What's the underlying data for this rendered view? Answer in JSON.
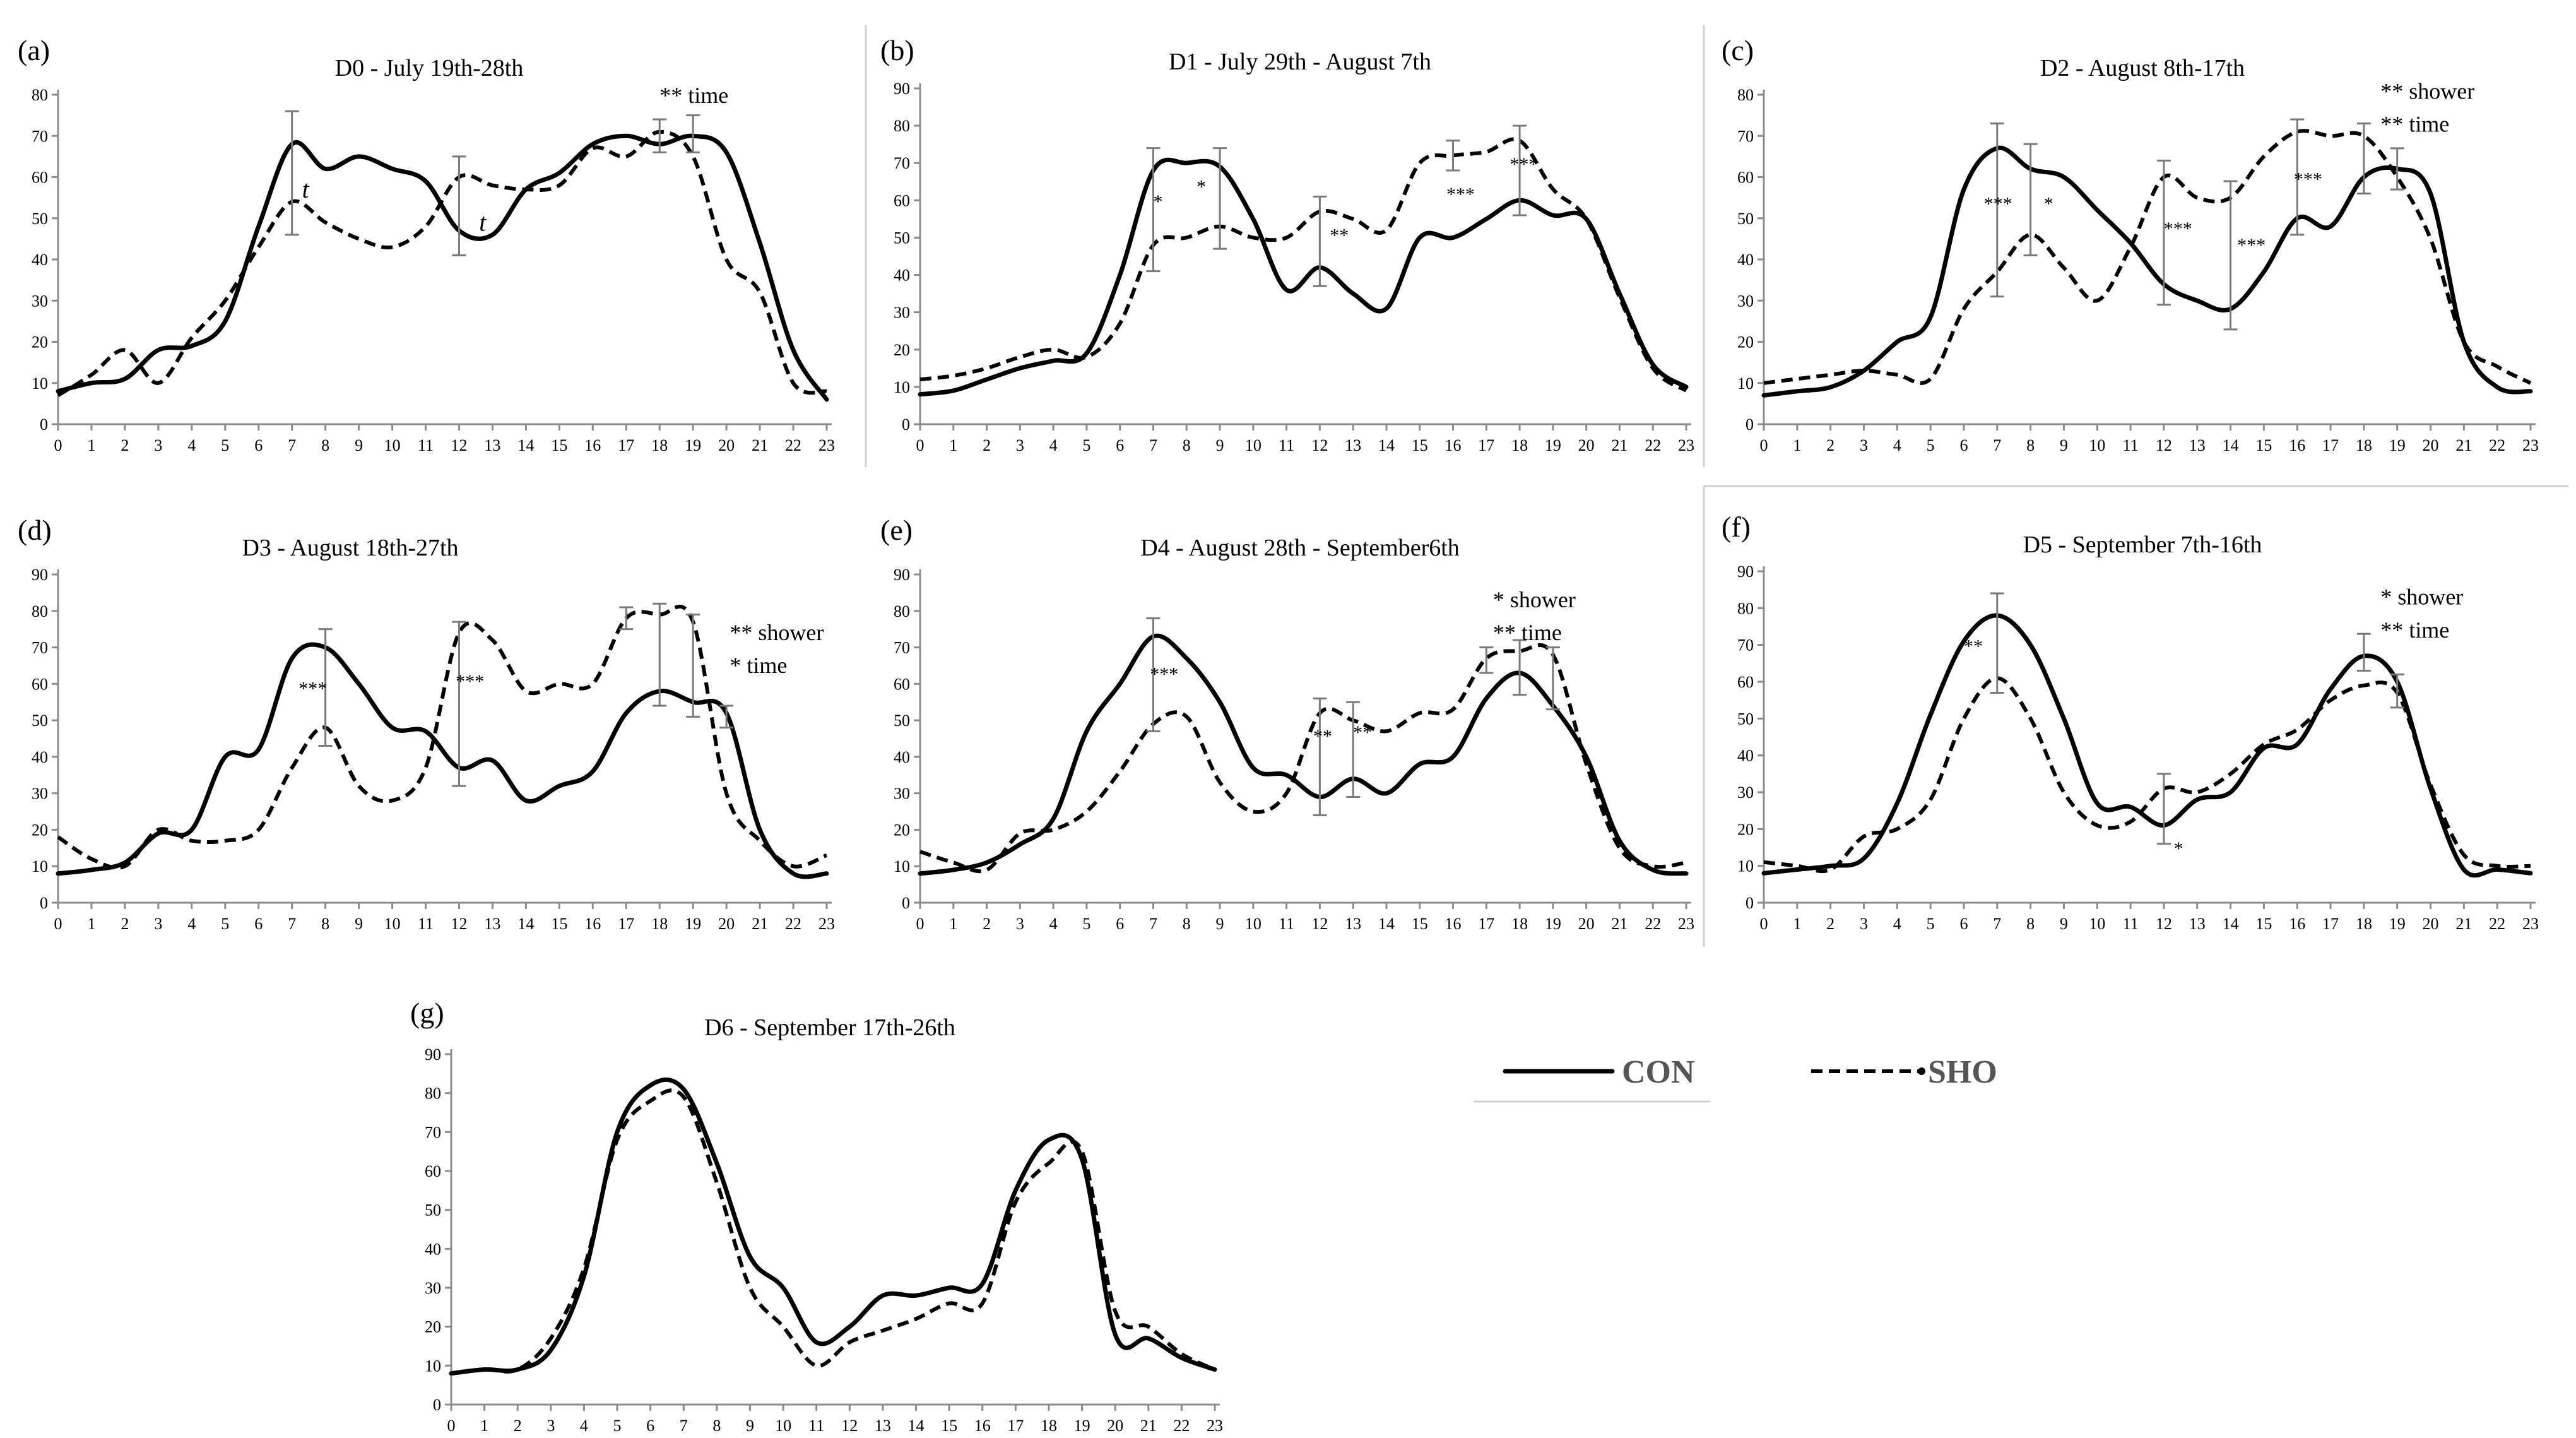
{
  "legend": {
    "con_label": "CON",
    "sho_label": "SHO"
  },
  "chart_data": [
    {
      "type": "line",
      "panel": "(a)",
      "title": "D0 - July 19th-28th",
      "x": [
        0,
        1,
        2,
        3,
        4,
        5,
        6,
        7,
        8,
        9,
        10,
        11,
        12,
        13,
        14,
        15,
        16,
        17,
        18,
        19,
        20,
        21,
        22,
        23
      ],
      "ylim": [
        0,
        80
      ],
      "yticks": [
        0,
        10,
        20,
        30,
        40,
        50,
        60,
        70,
        80
      ],
      "series": [
        {
          "name": "CON",
          "values": [
            8,
            10,
            11,
            18,
            19,
            25,
            48,
            68,
            62,
            65,
            62,
            59,
            47,
            46,
            57,
            61,
            68,
            70,
            68,
            70,
            66,
            44,
            18,
            6
          ]
        },
        {
          "name": "SHO",
          "values": [
            7,
            12,
            18,
            10,
            21,
            30,
            43,
            54,
            49,
            45,
            43,
            48,
            60,
            58,
            57,
            58,
            67,
            65,
            71,
            65,
            40,
            32,
            10,
            8
          ]
        }
      ],
      "error_bars": [
        {
          "x": 7,
          "lo": 46,
          "hi": 76
        },
        {
          "x": 12,
          "lo": 41,
          "hi": 65
        },
        {
          "x": 18,
          "lo": 66,
          "hi": 74
        },
        {
          "x": 19,
          "lo": 66,
          "hi": 75
        }
      ],
      "annotations": [
        {
          "text": "** time",
          "x": 18,
          "y": 78
        },
        {
          "text": "t",
          "x": 7.3,
          "y": 55,
          "italic": true
        },
        {
          "text": "t",
          "x": 12.6,
          "y": 47,
          "italic": true
        }
      ]
    },
    {
      "type": "line",
      "panel": "(b)",
      "title": "D1 - July 29th - August 7th",
      "x": [
        0,
        1,
        2,
        3,
        4,
        5,
        6,
        7,
        8,
        9,
        10,
        11,
        12,
        13,
        14,
        15,
        16,
        17,
        18,
        19,
        20,
        21,
        22,
        23
      ],
      "ylim": [
        0,
        90
      ],
      "yticks": [
        0,
        10,
        20,
        30,
        40,
        50,
        60,
        70,
        80,
        90
      ],
      "series": [
        {
          "name": "CON",
          "values": [
            8,
            9,
            12,
            15,
            17,
            19,
            40,
            68,
            70,
            69,
            55,
            36,
            42,
            35,
            31,
            50,
            50,
            55,
            60,
            56,
            55,
            35,
            16,
            10
          ]
        },
        {
          "name": "SHO",
          "values": [
            12,
            13,
            15,
            18,
            20,
            18,
            27,
            48,
            50,
            53,
            50,
            50,
            57,
            55,
            52,
            70,
            72,
            73,
            76,
            63,
            55,
            34,
            15,
            9
          ]
        }
      ],
      "error_bars": [
        {
          "x": 7,
          "lo": 41,
          "hi": 74
        },
        {
          "x": 9,
          "lo": 47,
          "hi": 74
        },
        {
          "x": 12,
          "lo": 37,
          "hi": 61
        },
        {
          "x": 16,
          "lo": 68,
          "hi": 76
        },
        {
          "x": 18,
          "lo": 56,
          "hi": 80
        }
      ],
      "annotations": [
        {
          "text": "*",
          "x": 7.0,
          "y": 58
        },
        {
          "text": "*",
          "x": 8.3,
          "y": 62
        },
        {
          "text": "**",
          "x": 12.3,
          "y": 49
        },
        {
          "text": "***",
          "x": 15.8,
          "y": 60
        },
        {
          "text": "***",
          "x": 17.7,
          "y": 68
        }
      ]
    },
    {
      "type": "line",
      "panel": "(c)",
      "title": "D2 - August 8th-17th",
      "x": [
        0,
        1,
        2,
        3,
        4,
        5,
        6,
        7,
        8,
        9,
        10,
        11,
        12,
        13,
        14,
        15,
        16,
        17,
        18,
        19,
        20,
        21,
        22,
        23
      ],
      "ylim": [
        0,
        80
      ],
      "yticks": [
        0,
        10,
        20,
        30,
        40,
        50,
        60,
        70,
        80
      ],
      "series": [
        {
          "name": "CON",
          "values": [
            7,
            8,
            9,
            13,
            20,
            26,
            57,
            67,
            62,
            60,
            52,
            44,
            34,
            30,
            28,
            37,
            50,
            48,
            60,
            62,
            56,
            20,
            9,
            8
          ]
        },
        {
          "name": "SHO",
          "values": [
            10,
            11,
            12,
            13,
            12,
            11,
            28,
            37,
            46,
            38,
            30,
            43,
            60,
            55,
            55,
            65,
            71,
            70,
            70,
            60,
            45,
            20,
            14,
            10
          ]
        }
      ],
      "error_bars": [
        {
          "x": 7,
          "lo": 31,
          "hi": 73
        },
        {
          "x": 8,
          "lo": 41,
          "hi": 68
        },
        {
          "x": 12,
          "lo": 29,
          "hi": 64
        },
        {
          "x": 14,
          "lo": 23,
          "hi": 59
        },
        {
          "x": 16,
          "lo": 46,
          "hi": 74
        },
        {
          "x": 18,
          "lo": 56,
          "hi": 73
        },
        {
          "x": 19,
          "lo": 57,
          "hi": 67
        }
      ],
      "annotations": [
        {
          "text": "** shower",
          "x": 18.5,
          "y": 79
        },
        {
          "text": "** time",
          "x": 18.5,
          "y": 71
        },
        {
          "text": "***",
          "x": 6.6,
          "y": 52
        },
        {
          "text": "*",
          "x": 8.4,
          "y": 52
        },
        {
          "text": "***",
          "x": 12.0,
          "y": 46
        },
        {
          "text": "***",
          "x": 14.2,
          "y": 42
        },
        {
          "text": "***",
          "x": 15.9,
          "y": 58
        }
      ]
    },
    {
      "type": "line",
      "panel": "(d)",
      "title": "D3 - August 18th-27th",
      "x": [
        0,
        1,
        2,
        3,
        4,
        5,
        6,
        7,
        8,
        9,
        10,
        11,
        12,
        13,
        14,
        15,
        16,
        17,
        18,
        19,
        20,
        21,
        22,
        23
      ],
      "ylim": [
        0,
        90
      ],
      "yticks": [
        0,
        10,
        20,
        30,
        40,
        50,
        60,
        70,
        80,
        90
      ],
      "series": [
        {
          "name": "CON",
          "values": [
            8,
            9,
            11,
            19,
            20,
            40,
            42,
            67,
            70,
            60,
            48,
            47,
            37,
            39,
            28,
            32,
            36,
            52,
            58,
            55,
            52,
            20,
            8,
            8
          ]
        },
        {
          "name": "SHO",
          "values": [
            18,
            12,
            10,
            20,
            17,
            17,
            20,
            37,
            48,
            32,
            28,
            37,
            74,
            72,
            58,
            60,
            60,
            78,
            79,
            77,
            30,
            17,
            10,
            13
          ]
        }
      ],
      "error_bars": [
        {
          "x": 8,
          "lo": 43,
          "hi": 75
        },
        {
          "x": 12,
          "lo": 32,
          "hi": 77
        },
        {
          "x": 17,
          "lo": 75,
          "hi": 81
        },
        {
          "x": 18,
          "lo": 54,
          "hi": 82
        },
        {
          "x": 19,
          "lo": 51,
          "hi": 79
        },
        {
          "x": 20,
          "lo": 48,
          "hi": 54
        }
      ],
      "annotations": [
        {
          "text": "** shower",
          "x": 20.1,
          "y": 72
        },
        {
          "text": "* time",
          "x": 20.1,
          "y": 63
        },
        {
          "text": "***",
          "x": 7.2,
          "y": 57
        },
        {
          "text": "***",
          "x": 11.9,
          "y": 59
        }
      ]
    },
    {
      "type": "line",
      "panel": "(e)",
      "title": "D4 - August 28th - September6th",
      "x": [
        0,
        1,
        2,
        3,
        4,
        5,
        6,
        7,
        8,
        9,
        10,
        11,
        12,
        13,
        14,
        15,
        16,
        17,
        18,
        19,
        20,
        21,
        22,
        23
      ],
      "ylim": [
        0,
        90
      ],
      "yticks": [
        0,
        10,
        20,
        30,
        40,
        50,
        60,
        70,
        80,
        90
      ],
      "series": [
        {
          "name": "CON",
          "values": [
            8,
            9,
            11,
            16,
            23,
            47,
            60,
            73,
            67,
            55,
            37,
            35,
            29,
            34,
            30,
            38,
            40,
            56,
            63,
            54,
            40,
            17,
            9,
            8
          ]
        },
        {
          "name": "SHO",
          "values": [
            14,
            11,
            9,
            19,
            20,
            25,
            36,
            49,
            51,
            33,
            25,
            30,
            52,
            50,
            47,
            52,
            53,
            67,
            69,
            68,
            38,
            15,
            10,
            11
          ]
        }
      ],
      "error_bars": [
        {
          "x": 7,
          "lo": 47,
          "hi": 78
        },
        {
          "x": 12,
          "lo": 24,
          "hi": 56
        },
        {
          "x": 13,
          "lo": 29,
          "hi": 55
        },
        {
          "x": 17,
          "lo": 63,
          "hi": 70
        },
        {
          "x": 18,
          "lo": 57,
          "hi": 72
        },
        {
          "x": 19,
          "lo": 53,
          "hi": 70
        }
      ],
      "annotations": [
        {
          "text": "* shower",
          "x": 17.2,
          "y": 81
        },
        {
          "text": "** time",
          "x": 17.2,
          "y": 72
        },
        {
          "text": "***",
          "x": 6.9,
          "y": 61
        },
        {
          "text": "**",
          "x": 11.8,
          "y": 44
        },
        {
          "text": "**",
          "x": 13.0,
          "y": 45
        }
      ]
    },
    {
      "type": "line",
      "panel": "(f)",
      "title": "D5 - September 7th-16th",
      "x": [
        0,
        1,
        2,
        3,
        4,
        5,
        6,
        7,
        8,
        9,
        10,
        11,
        12,
        13,
        14,
        15,
        16,
        17,
        18,
        19,
        20,
        21,
        22,
        23
      ],
      "ylim": [
        0,
        90
      ],
      "yticks": [
        0,
        10,
        20,
        30,
        40,
        50,
        60,
        70,
        80,
        90
      ],
      "series": [
        {
          "name": "CON",
          "values": [
            8,
            9,
            10,
            12,
            27,
            51,
            71,
            78,
            70,
            50,
            27,
            26,
            21,
            28,
            30,
            42,
            43,
            58,
            67,
            60,
            31,
            9,
            9,
            8
          ]
        },
        {
          "name": "SHO",
          "values": [
            11,
            10,
            9,
            18,
            20,
            28,
            50,
            61,
            50,
            30,
            21,
            22,
            31,
            30,
            35,
            43,
            47,
            55,
            59,
            57,
            32,
            13,
            10,
            10
          ]
        }
      ],
      "error_bars": [
        {
          "x": 7,
          "lo": 57,
          "hi": 84
        },
        {
          "x": 12,
          "lo": 16,
          "hi": 35
        },
        {
          "x": 18,
          "lo": 63,
          "hi": 73
        },
        {
          "x": 19,
          "lo": 53,
          "hi": 62
        }
      ],
      "annotations": [
        {
          "text": "* shower",
          "x": 18.5,
          "y": 81
        },
        {
          "text": "** time",
          "x": 18.5,
          "y": 72
        },
        {
          "text": "**",
          "x": 6.0,
          "y": 68
        },
        {
          "text": "*",
          "x": 12.3,
          "y": 13
        }
      ]
    },
    {
      "type": "line",
      "panel": "(g)",
      "title": "D6 - September 17th-26th",
      "x": [
        0,
        1,
        2,
        3,
        4,
        5,
        6,
        7,
        8,
        9,
        10,
        11,
        12,
        13,
        14,
        15,
        16,
        17,
        18,
        19,
        20,
        21,
        22,
        23
      ],
      "ylim": [
        0,
        90
      ],
      "yticks": [
        0,
        10,
        20,
        30,
        40,
        50,
        60,
        70,
        80,
        90
      ],
      "series": [
        {
          "name": "CON",
          "values": [
            8,
            9,
            9,
            14,
            33,
            70,
            82,
            81,
            62,
            38,
            30,
            16,
            20,
            28,
            28,
            30,
            31,
            55,
            68,
            63,
            18,
            17,
            12,
            9
          ]
        },
        {
          "name": "SHO",
          "values": [
            8,
            9,
            9,
            17,
            35,
            68,
            78,
            79,
            57,
            30,
            20,
            10,
            16,
            19,
            22,
            26,
            26,
            52,
            62,
            65,
            24,
            20,
            13,
            9
          ]
        }
      ],
      "error_bars": [],
      "annotations": []
    }
  ]
}
